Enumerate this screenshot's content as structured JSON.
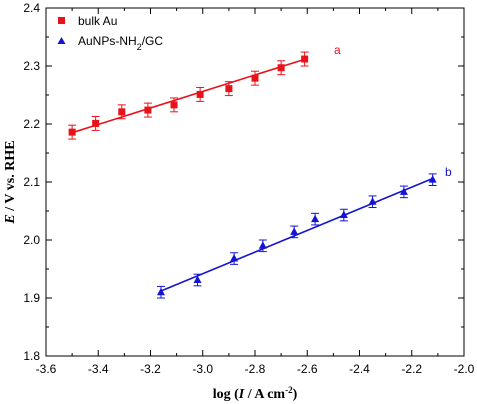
{
  "chart_data": {
    "type": "scatter",
    "title": "",
    "xlabel": "",
    "ylabel": "",
    "xlim": [
      -3.6,
      -2.0
    ],
    "ylim": [
      1.8,
      2.4
    ],
    "xticks": [
      "-3.6",
      "-3.4",
      "-3.2",
      "-3.0",
      "-2.8",
      "-2.6",
      "-2.4",
      "-2.2",
      "-2.0"
    ],
    "yticks": [
      "1.8",
      "1.9",
      "2.0",
      "2.1",
      "2.2",
      "2.3",
      "2.4"
    ],
    "grid": false,
    "legend_position": "top-left",
    "series": [
      {
        "name": "bulk Au",
        "marker": "square",
        "color": "#e8121b",
        "label": "a",
        "x": [
          -3.5,
          -3.41,
          -3.31,
          -3.21,
          -3.11,
          -3.01,
          -2.9,
          -2.8,
          -2.7,
          -2.61
        ],
        "y": [
          2.186,
          2.201,
          2.221,
          2.224,
          2.233,
          2.251,
          2.261,
          2.279,
          2.297,
          2.312
        ],
        "error": [
          0.012,
          0.012,
          0.012,
          0.012,
          0.012,
          0.012,
          0.012,
          0.012,
          0.012,
          0.012
        ],
        "fit": [
          [
            -3.5,
            2.185
          ],
          [
            -2.6,
            2.313
          ]
        ]
      },
      {
        "name": "AuNPs-NH2/GC",
        "marker": "triangle",
        "color": "#1414d2",
        "label": "b",
        "x": [
          -3.16,
          -3.02,
          -2.88,
          -2.77,
          -2.65,
          -2.57,
          -2.46,
          -2.35,
          -2.23,
          -2.12
        ],
        "y": [
          1.91,
          1.931,
          1.968,
          1.99,
          2.014,
          2.036,
          2.043,
          2.066,
          2.083,
          2.104
        ],
        "error": [
          0.01,
          0.01,
          0.01,
          0.01,
          0.01,
          0.01,
          0.01,
          0.01,
          0.01,
          0.01
        ],
        "fit": [
          [
            -3.16,
            1.912
          ],
          [
            -2.12,
            2.106
          ]
        ]
      }
    ]
  }
}
